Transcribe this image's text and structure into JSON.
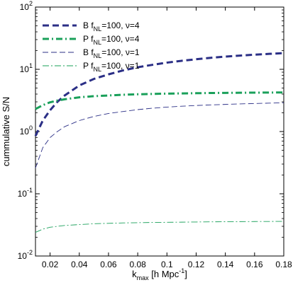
{
  "chart_data": {
    "type": "line",
    "xlabel": "k",
    "xlabel_sub": "max",
    "xlabel_unit": " [h Mpc",
    "xlabel_unit_sup": "-1",
    "xlabel_unit_end": "]",
    "ylabel": "cummulative S/N",
    "xlim": [
      0.01,
      0.18
    ],
    "ylim": [
      0.01,
      100
    ],
    "yscale": "log",
    "grid": false,
    "legend_position": "top-left",
    "x_ticks": [
      {
        "value": 0.02,
        "label": "0.02"
      },
      {
        "value": 0.04,
        "label": "0.04"
      },
      {
        "value": 0.06,
        "label": "0.06"
      },
      {
        "value": 0.08,
        "label": "0.08"
      },
      {
        "value": 0.1,
        "label": "0.1"
      },
      {
        "value": 0.12,
        "label": "0.12"
      },
      {
        "value": 0.14,
        "label": "0.14"
      },
      {
        "value": 0.16,
        "label": "0.16"
      },
      {
        "value": 0.18,
        "label": "0.18"
      }
    ],
    "y_ticks": [
      {
        "value": 0.01,
        "base": "10",
        "exp": "-2"
      },
      {
        "value": 0.1,
        "base": "10",
        "exp": "-1"
      },
      {
        "value": 1,
        "base": "10",
        "exp": "0"
      },
      {
        "value": 10,
        "base": "10",
        "exp": "1"
      },
      {
        "value": 100,
        "base": "10",
        "exp": "2"
      }
    ],
    "series": [
      {
        "name_pre": "B f",
        "name_sub": "NL",
        "name_post": "=100, ν=4",
        "color": "#2b2f86",
        "style": "thick-dash",
        "x": [
          0.01,
          0.015,
          0.02,
          0.025,
          0.03,
          0.04,
          0.05,
          0.06,
          0.07,
          0.08,
          0.09,
          0.1,
          0.11,
          0.12,
          0.13,
          0.14,
          0.15,
          0.16,
          0.17,
          0.18
        ],
        "y": [
          0.85,
          1.5,
          2.2,
          3.0,
          3.8,
          5.5,
          7.0,
          8.3,
          9.6,
          10.8,
          11.8,
          12.8,
          13.7,
          14.5,
          15.3,
          16.0,
          16.6,
          17.2,
          17.7,
          18.2
        ]
      },
      {
        "name_pre": "P f",
        "name_sub": "NL",
        "name_post": "=100, ν=4",
        "color": "#1aa05a",
        "style": "thick-dashdot",
        "x": [
          0.01,
          0.015,
          0.02,
          0.025,
          0.03,
          0.04,
          0.05,
          0.06,
          0.07,
          0.08,
          0.09,
          0.1,
          0.11,
          0.12,
          0.13,
          0.14,
          0.15,
          0.16,
          0.17,
          0.18
        ],
        "y": [
          2.3,
          2.65,
          2.95,
          3.15,
          3.3,
          3.55,
          3.7,
          3.8,
          3.9,
          3.97,
          4.02,
          4.07,
          4.1,
          4.13,
          4.16,
          4.18,
          4.2,
          4.22,
          4.23,
          4.25
        ]
      },
      {
        "name_pre": "B f",
        "name_sub": "NL",
        "name_post": "=100, ν=1",
        "color": "#2b2f86",
        "style": "thin-dash",
        "x": [
          0.01,
          0.015,
          0.02,
          0.025,
          0.03,
          0.04,
          0.05,
          0.06,
          0.07,
          0.08,
          0.09,
          0.1,
          0.11,
          0.12,
          0.13,
          0.14,
          0.15,
          0.16,
          0.17,
          0.18
        ],
        "y": [
          0.26,
          0.55,
          0.8,
          1.0,
          1.2,
          1.5,
          1.75,
          1.95,
          2.1,
          2.25,
          2.37,
          2.47,
          2.55,
          2.62,
          2.68,
          2.73,
          2.78,
          2.82,
          2.86,
          2.9
        ]
      },
      {
        "name_pre": "P f",
        "name_sub": "NL",
        "name_post": "=100, ν=1",
        "color": "#1aa05a",
        "style": "thin-dashdot",
        "x": [
          0.01,
          0.015,
          0.02,
          0.025,
          0.03,
          0.04,
          0.05,
          0.06,
          0.07,
          0.08,
          0.09,
          0.1,
          0.11,
          0.12,
          0.13,
          0.14,
          0.15,
          0.16,
          0.17,
          0.18
        ],
        "y": [
          0.024,
          0.027,
          0.029,
          0.03,
          0.031,
          0.032,
          0.033,
          0.0335,
          0.034,
          0.0343,
          0.0346,
          0.0348,
          0.035,
          0.0352,
          0.0354,
          0.0356,
          0.0357,
          0.0358,
          0.0359,
          0.036
        ]
      }
    ]
  }
}
